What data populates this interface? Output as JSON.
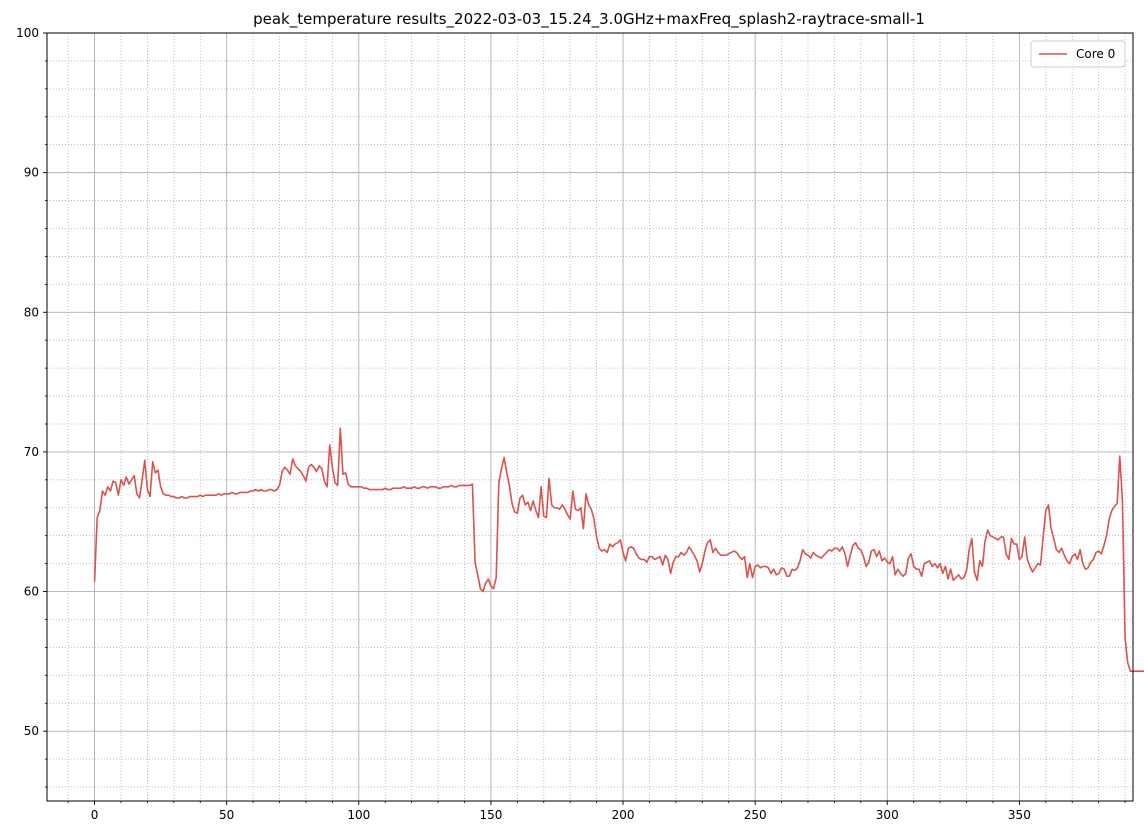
{
  "chart_data": {
    "type": "line",
    "title": "peak_temperature results_2022-03-03_15.24_3.0GHz+maxFreq_splash2-raytrace-small-1",
    "xlabel": "",
    "ylabel": "",
    "xlim": [
      -18,
      393
    ],
    "ylim": [
      45,
      100
    ],
    "x_ticks": [
      0,
      50,
      100,
      150,
      200,
      250,
      300,
      350
    ],
    "y_ticks": [
      50,
      60,
      70,
      80,
      90,
      100
    ],
    "x_minor_step": 10,
    "y_minor_step": 2,
    "grid": true,
    "legend_position": "top-right",
    "series": [
      {
        "name": "Core 0",
        "color": "#d9534f",
        "x_start": 0,
        "x_step": 1,
        "values": [
          60.7,
          65.3,
          65.8,
          67.2,
          66.9,
          67.5,
          67.2,
          67.9,
          67.8,
          66.9,
          68.0,
          67.6,
          68.2,
          67.7,
          68.0,
          68.3,
          67.0,
          66.7,
          68.0,
          69.4,
          67.3,
          66.8,
          69.3,
          68.5,
          68.7,
          67.5,
          67.0,
          66.9,
          66.9,
          66.8,
          66.8,
          66.7,
          66.7,
          66.8,
          66.7,
          66.7,
          66.8,
          66.8,
          66.8,
          66.8,
          66.9,
          66.8,
          66.9,
          66.9,
          66.9,
          66.9,
          66.9,
          67.0,
          66.9,
          67.0,
          67.0,
          67.0,
          67.1,
          67.0,
          67.0,
          67.1,
          67.1,
          67.1,
          67.1,
          67.2,
          67.2,
          67.3,
          67.2,
          67.3,
          67.2,
          67.2,
          67.3,
          67.3,
          67.2,
          67.3,
          67.6,
          68.6,
          68.9,
          68.7,
          68.4,
          69.5,
          69.0,
          68.8,
          68.6,
          68.3,
          67.9,
          68.9,
          69.1,
          68.9,
          68.6,
          69.0,
          68.8,
          67.9,
          67.5,
          70.5,
          68.9,
          67.8,
          67.6,
          71.7,
          68.4,
          68.5,
          67.7,
          67.5,
          67.5,
          67.5,
          67.5,
          67.5,
          67.4,
          67.4,
          67.3,
          67.3,
          67.3,
          67.3,
          67.3,
          67.3,
          67.4,
          67.3,
          67.3,
          67.4,
          67.4,
          67.4,
          67.4,
          67.5,
          67.4,
          67.4,
          67.4,
          67.5,
          67.4,
          67.4,
          67.5,
          67.5,
          67.4,
          67.5,
          67.5,
          67.5,
          67.4,
          67.4,
          67.5,
          67.5,
          67.5,
          67.6,
          67.5,
          67.5,
          67.6,
          67.6,
          67.6,
          67.6,
          67.6,
          67.7,
          62.1,
          61.2,
          60.2,
          60.0,
          60.6,
          60.9,
          60.4,
          60.2,
          61.0,
          67.8,
          68.8,
          69.6,
          68.5,
          67.6,
          66.3,
          65.7,
          65.6,
          66.7,
          66.9,
          66.2,
          66.4,
          65.8,
          66.5,
          65.8,
          65.3,
          67.5,
          65.4,
          65.3,
          68.1,
          66.2,
          66.0,
          66.0,
          65.9,
          66.2,
          65.9,
          65.5,
          65.2,
          67.2,
          65.9,
          65.8,
          66.0,
          64.5,
          67.0,
          66.2,
          65.9,
          65.2,
          63.9,
          63.1,
          62.9,
          63.0,
          62.8,
          63.4,
          63.2,
          63.4,
          63.5,
          63.7,
          62.8,
          62.2,
          63.1,
          63.2,
          63.1,
          62.7,
          62.4,
          62.3,
          62.3,
          62.1,
          62.5,
          62.5,
          62.3,
          62.4,
          62.5,
          61.9,
          62.6,
          62.3,
          61.3,
          62.1,
          62.5,
          62.5,
          62.8,
          62.6,
          62.8,
          63.2,
          62.9,
          62.6,
          62.2,
          61.4,
          62.0,
          62.9,
          63.5,
          63.7,
          62.8,
          63.1,
          62.8,
          62.6,
          62.6,
          62.6,
          62.7,
          62.8,
          62.9,
          62.8,
          62.5,
          62.3,
          62.5,
          61.0,
          62.0,
          61.0,
          61.8,
          61.9,
          61.7,
          61.8,
          61.8,
          61.7,
          61.3,
          61.6,
          61.2,
          61.3,
          61.7,
          61.6,
          61.1,
          61.1,
          61.6,
          61.5,
          61.7,
          62.2,
          63.0,
          62.7,
          62.6,
          62.4,
          62.8,
          62.6,
          62.5,
          62.4,
          62.6,
          62.8,
          63.0,
          62.9,
          63.1,
          63.1,
          62.9,
          63.2,
          62.7,
          61.8,
          62.6,
          63.3,
          63.5,
          63.1,
          63.0,
          62.5,
          61.8,
          62.1,
          62.9,
          63.0,
          62.5,
          62.9,
          62.2,
          62.4,
          62.1,
          62.0,
          62.5,
          61.2,
          61.6,
          61.3,
          61.1,
          61.3,
          62.4,
          62.7,
          61.8,
          61.6,
          61.6,
          61.1,
          62.0,
          62.1,
          62.2,
          61.8,
          62.0,
          61.7,
          62.0,
          61.3,
          61.8,
          60.9,
          61.6,
          60.8,
          61.0,
          61.2,
          60.9,
          61.0,
          61.5,
          63.0,
          63.8,
          61.4,
          60.8,
          62.2,
          61.8,
          63.6,
          64.4,
          64.0,
          63.9,
          63.8,
          63.7,
          63.9,
          63.9,
          62.7,
          62.3,
          63.8,
          63.4,
          63.4,
          62.3,
          62.5,
          63.9,
          62.3,
          61.8,
          61.4,
          61.7,
          62.0,
          61.9,
          63.9,
          65.8,
          66.2,
          64.5,
          63.8,
          63.0,
          62.8,
          63.1,
          62.6,
          62.2,
          62.0,
          62.5,
          62.7,
          62.3,
          63.0,
          62.0,
          61.6,
          61.7,
          62.1,
          62.3,
          62.8,
          62.9,
          62.7,
          63.3,
          64.0,
          65.2,
          65.8,
          66.1,
          66.3,
          69.7,
          66.5,
          56.7,
          54.9,
          54.3,
          54.3,
          54.3,
          54.3,
          54.3,
          54.3,
          54.3
        ]
      }
    ]
  }
}
